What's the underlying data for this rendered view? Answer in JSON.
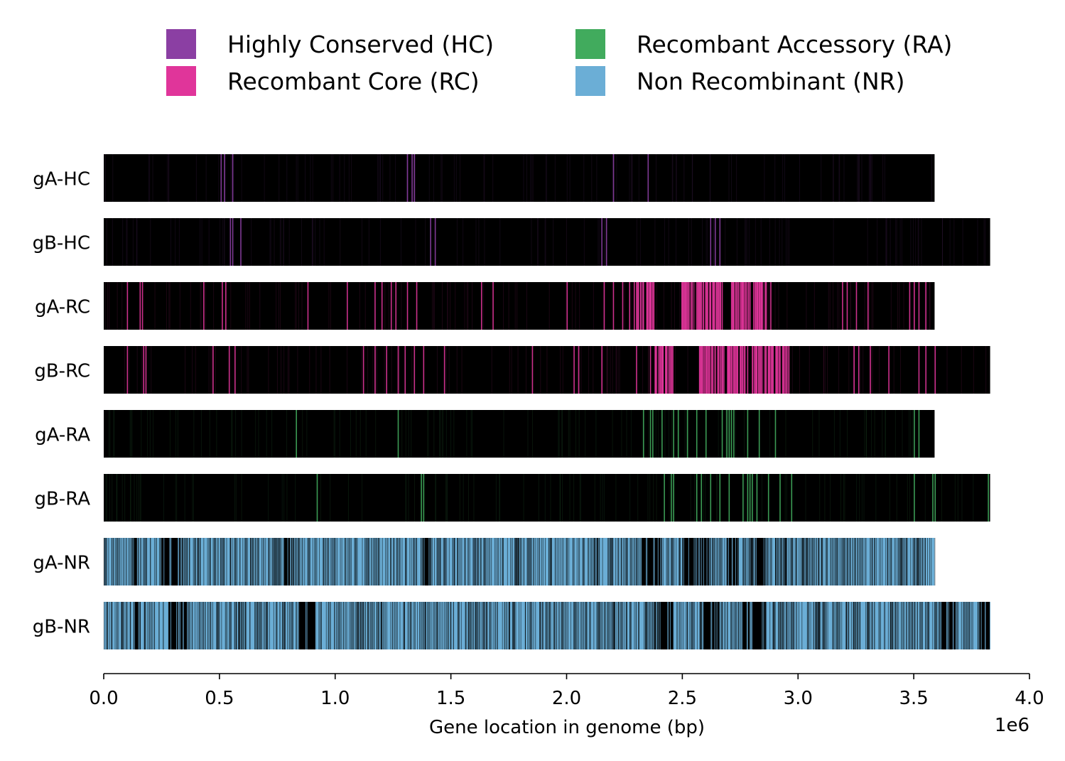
{
  "chart_data": {
    "type": "genome-track",
    "xlabel": "Gene location in genome (bp)",
    "x_scale_label": "1e6",
    "xlim": [
      0,
      4.0
    ],
    "x_ticks": [
      "0.0",
      "0.5",
      "1.0",
      "1.5",
      "2.0",
      "2.5",
      "3.0",
      "3.5",
      "4.0"
    ],
    "legend": {
      "placement": "top",
      "entries": [
        {
          "label": "Highly Conserved (HC)",
          "color": "#8b3fa3"
        },
        {
          "label": "Recombant Core (RC)",
          "color": "#e0359a"
        },
        {
          "label": "Recombant Accessory (RA)",
          "color": "#41ab5d"
        },
        {
          "label": "Non Recombinant (NR)",
          "color": "#6baed6"
        }
      ]
    },
    "tracks": [
      {
        "label": "gA-HC",
        "genome_length": 3.59,
        "category": "HC",
        "features": [
          0.505,
          0.52,
          0.555,
          1.31,
          1.33,
          1.34,
          2.2,
          2.35
        ]
      },
      {
        "label": "gB-HC",
        "genome_length": 3.83,
        "category": "HC",
        "features": [
          0.545,
          0.555,
          0.59,
          1.41,
          1.43,
          2.15,
          2.17,
          2.62,
          2.64,
          2.66
        ]
      },
      {
        "label": "gA-RC",
        "genome_length": 3.59,
        "category": "RC",
        "dense_regions": [
          [
            2.3,
            2.38
          ],
          [
            2.49,
            2.67
          ],
          [
            2.71,
            2.86
          ]
        ],
        "features": [
          0.1,
          0.155,
          0.165,
          0.43,
          0.51,
          0.525,
          0.88,
          1.05,
          1.17,
          1.2,
          1.24,
          1.26,
          1.31,
          1.35,
          1.63,
          1.68,
          2.0,
          2.16,
          2.2,
          2.24,
          2.27,
          2.29,
          2.3,
          2.33,
          2.36,
          2.37,
          2.51,
          2.54,
          2.57,
          2.6,
          2.62,
          2.65,
          2.67,
          2.73,
          2.76,
          2.79,
          2.82,
          2.84,
          2.86,
          2.88,
          3.19,
          3.21,
          3.25,
          3.3,
          3.48,
          3.5,
          3.52,
          3.55
        ]
      },
      {
        "label": "gB-RC",
        "genome_length": 3.83,
        "category": "RC",
        "dense_regions": [
          [
            2.38,
            2.46
          ],
          [
            2.57,
            2.77
          ],
          [
            2.8,
            2.96
          ]
        ],
        "features": [
          0.1,
          0.17,
          0.18,
          0.47,
          0.54,
          0.565,
          1.12,
          1.17,
          1.22,
          1.27,
          1.3,
          1.34,
          1.38,
          1.47,
          1.85,
          2.03,
          2.05,
          2.15,
          2.3,
          2.36,
          2.38,
          2.41,
          2.43,
          2.45,
          2.58,
          2.61,
          2.64,
          2.67,
          2.7,
          2.73,
          2.75,
          2.78,
          2.82,
          2.86,
          2.89,
          2.92,
          2.95,
          3.24,
          3.26,
          3.31,
          3.39,
          3.52,
          3.55,
          3.59
        ]
      },
      {
        "label": "gA-RA",
        "genome_length": 3.59,
        "category": "RA",
        "features": [
          0.83,
          1.27,
          2.33,
          2.36,
          2.37,
          2.41,
          2.46,
          2.48,
          2.52,
          2.56,
          2.6,
          2.67,
          2.69,
          2.7,
          2.71,
          2.72,
          2.78,
          2.83,
          2.9,
          3.5,
          3.52
        ]
      },
      {
        "label": "gB-RA",
        "genome_length": 3.83,
        "category": "RA",
        "features": [
          0.92,
          1.37,
          1.38,
          2.42,
          2.45,
          2.46,
          2.56,
          2.58,
          2.62,
          2.66,
          2.7,
          2.76,
          2.78,
          2.79,
          2.8,
          2.82,
          2.87,
          2.92,
          2.97,
          3.5,
          3.58,
          3.59,
          3.82
        ]
      },
      {
        "label": "gA-NR",
        "genome_length": 3.59,
        "category": "NR",
        "dark_regions": [
          [
            0.13,
            0.15
          ],
          [
            0.25,
            0.34
          ],
          [
            0.78,
            0.82
          ],
          [
            1.37,
            1.41
          ],
          [
            2.32,
            2.41
          ],
          [
            2.5,
            2.62
          ],
          [
            2.69,
            2.74
          ],
          [
            2.79,
            2.85
          ]
        ]
      },
      {
        "label": "gB-NR",
        "genome_length": 3.83,
        "category": "NR",
        "dark_regions": [
          [
            0.13,
            0.15
          ],
          [
            0.28,
            0.36
          ],
          [
            0.84,
            0.92
          ],
          [
            2.38,
            2.46
          ],
          [
            2.58,
            2.66
          ],
          [
            2.76,
            2.86
          ],
          [
            3.62,
            3.68
          ],
          [
            3.78,
            3.83
          ]
        ]
      }
    ]
  }
}
